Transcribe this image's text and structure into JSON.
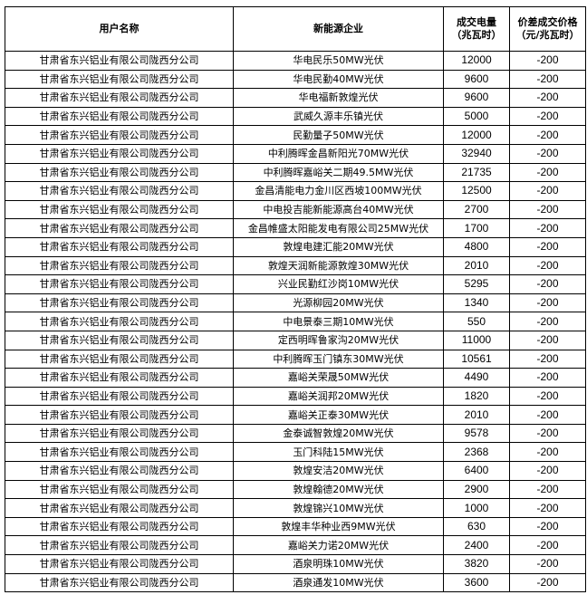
{
  "headers": {
    "user": "用户名称",
    "company": "新能源企业",
    "volume_line1": "成交电量",
    "volume_line2": "（兆瓦时）",
    "price_line1": "价差成交价格",
    "price_line2": "（元/兆瓦时）"
  },
  "rows": [
    {
      "user": "甘肃省东兴铝业有限公司陇西分公司",
      "company": "华电民乐50MW光伏",
      "volume": "12000",
      "price": "-200"
    },
    {
      "user": "甘肃省东兴铝业有限公司陇西分公司",
      "company": "华电民勤40MW光伏",
      "volume": "9600",
      "price": "-200"
    },
    {
      "user": "甘肃省东兴铝业有限公司陇西分公司",
      "company": "华电福新敦煌光伏",
      "volume": "9600",
      "price": "-200"
    },
    {
      "user": "甘肃省东兴铝业有限公司陇西分公司",
      "company": "武威久源丰乐镇光伏",
      "volume": "5000",
      "price": "-200"
    },
    {
      "user": "甘肃省东兴铝业有限公司陇西分公司",
      "company": "民勤量子50MW光伏",
      "volume": "12000",
      "price": "-200"
    },
    {
      "user": "甘肃省东兴铝业有限公司陇西分公司",
      "company": "中利腾晖金昌新阳光70MW光伏",
      "volume": "32940",
      "price": "-200"
    },
    {
      "user": "甘肃省东兴铝业有限公司陇西分公司",
      "company": "中利腾晖嘉峪关二期49.5MW光伏",
      "volume": "21735",
      "price": "-200"
    },
    {
      "user": "甘肃省东兴铝业有限公司陇西分公司",
      "company": "金昌清能电力金川区西坡100MW光伏",
      "volume": "12500",
      "price": "-200"
    },
    {
      "user": "甘肃省东兴铝业有限公司陇西分公司",
      "company": "中电投吉能新能源高台40MW光伏",
      "volume": "2700",
      "price": "-200"
    },
    {
      "user": "甘肃省东兴铝业有限公司陇西分公司",
      "company": "金昌帷盛太阳能发电有限公司25MW光伏",
      "volume": "1700",
      "price": "-200"
    },
    {
      "user": "甘肃省东兴铝业有限公司陇西分公司",
      "company": "敦煌电建汇能20MW光伏",
      "volume": "4800",
      "price": "-200"
    },
    {
      "user": "甘肃省东兴铝业有限公司陇西分公司",
      "company": "敦煌天润新能源敦煌30MW光伏",
      "volume": "2010",
      "price": "-200"
    },
    {
      "user": "甘肃省东兴铝业有限公司陇西分公司",
      "company": "兴业民勤红沙岗10MW光伏",
      "volume": "5295",
      "price": "-200"
    },
    {
      "user": "甘肃省东兴铝业有限公司陇西分公司",
      "company": "光源柳园20MW光伏",
      "volume": "1340",
      "price": "-200"
    },
    {
      "user": "甘肃省东兴铝业有限公司陇西分公司",
      "company": "中电景泰三期10MW光伏",
      "volume": "550",
      "price": "-200"
    },
    {
      "user": "甘肃省东兴铝业有限公司陇西分公司",
      "company": "定西明晖鲁家沟20MW光伏",
      "volume": "11000",
      "price": "-200"
    },
    {
      "user": "甘肃省东兴铝业有限公司陇西分公司",
      "company": "中利腾晖玉门镇东30MW光伏",
      "volume": "10561",
      "price": "-200"
    },
    {
      "user": "甘肃省东兴铝业有限公司陇西分公司",
      "company": "嘉峪关荣晟50MW光伏",
      "volume": "4490",
      "price": "-200"
    },
    {
      "user": "甘肃省东兴铝业有限公司陇西分公司",
      "company": "嘉峪关润邦20MW光伏",
      "volume": "1820",
      "price": "-200"
    },
    {
      "user": "甘肃省东兴铝业有限公司陇西分公司",
      "company": "嘉峪关正泰30MW光伏",
      "volume": "2010",
      "price": "-200"
    },
    {
      "user": "甘肃省东兴铝业有限公司陇西分公司",
      "company": "金泰诚智敦煌20MW光伏",
      "volume": "9578",
      "price": "-200"
    },
    {
      "user": "甘肃省东兴铝业有限公司陇西分公司",
      "company": "玉门科陆15MW光伏",
      "volume": "2368",
      "price": "-200"
    },
    {
      "user": "甘肃省东兴铝业有限公司陇西分公司",
      "company": "敦煌安洁20MW光伏",
      "volume": "6400",
      "price": "-200"
    },
    {
      "user": "甘肃省东兴铝业有限公司陇西分公司",
      "company": "敦煌翰德20MW光伏",
      "volume": "2900",
      "price": "-200"
    },
    {
      "user": "甘肃省东兴铝业有限公司陇西分公司",
      "company": "敦煌锦兴10MW光伏",
      "volume": "1000",
      "price": "-200"
    },
    {
      "user": "甘肃省东兴铝业有限公司陇西分公司",
      "company": "敦煌丰华种业西9MW光伏",
      "volume": "630",
      "price": "-200"
    },
    {
      "user": "甘肃省东兴铝业有限公司陇西分公司",
      "company": "嘉峪关力诺20MW光伏",
      "volume": "2400",
      "price": "-200"
    },
    {
      "user": "甘肃省东兴铝业有限公司陇西分公司",
      "company": "酒泉明珠10MW光伏",
      "volume": "3820",
      "price": "-200"
    },
    {
      "user": "甘肃省东兴铝业有限公司陇西分公司",
      "company": "酒泉通发10MW光伏",
      "volume": "3600",
      "price": "-200"
    }
  ]
}
